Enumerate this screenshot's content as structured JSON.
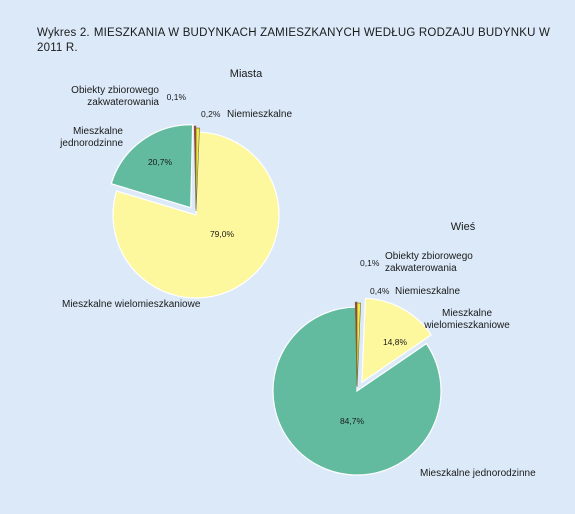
{
  "figure": {
    "label": "Wykres 2.",
    "title": "MIESZKANIA W BUDYNKACH ZAMIESZKANYCH WEDŁUG RODZAJU BUDYNKU W 2011 R."
  },
  "colors": {
    "background": "#dbe9f8",
    "jednorodzinne": "#62bb9f",
    "wielomieszkaniowe": "#fdf79d",
    "niemieszkalne": "#eeec3e",
    "zbiorowego": "#b0284f",
    "outline": "#ffffff"
  },
  "chart_data": [
    {
      "type": "pie",
      "title": "Miasta",
      "slices": [
        {
          "key": "wielomieszkaniowe",
          "label": "Mieszkalne wielomieszkaniowe",
          "value": 79.0,
          "value_label": "79,0%"
        },
        {
          "key": "jednorodzinne",
          "label": "Mieszkalne jednorodzinne",
          "value": 20.7,
          "value_label": "20,7%"
        },
        {
          "key": "zbiorowego",
          "label": "Obiekty zbiorowego zakwaterowania",
          "value": 0.1,
          "value_label": "0,1%"
        },
        {
          "key": "niemieszkalne",
          "label": "Niemieszkalne",
          "value": 0.2,
          "value_label": "0,2%"
        }
      ]
    },
    {
      "type": "pie",
      "title": "Wieś",
      "slices": [
        {
          "key": "jednorodzinne",
          "label": "Mieszkalne jednorodzinne",
          "value": 84.7,
          "value_label": "84,7%"
        },
        {
          "key": "zbiorowego",
          "label": "Obiekty zbiorowego zakwaterowania",
          "value": 0.1,
          "value_label": "0,1%"
        },
        {
          "key": "niemieszkalne",
          "label": "Niemieszkalne",
          "value": 0.4,
          "value_label": "0,4%"
        },
        {
          "key": "wielomieszkaniowe",
          "label": "Mieszkalne wielomieszkaniowe",
          "value": 14.8,
          "value_label": "14,8%"
        }
      ]
    }
  ]
}
